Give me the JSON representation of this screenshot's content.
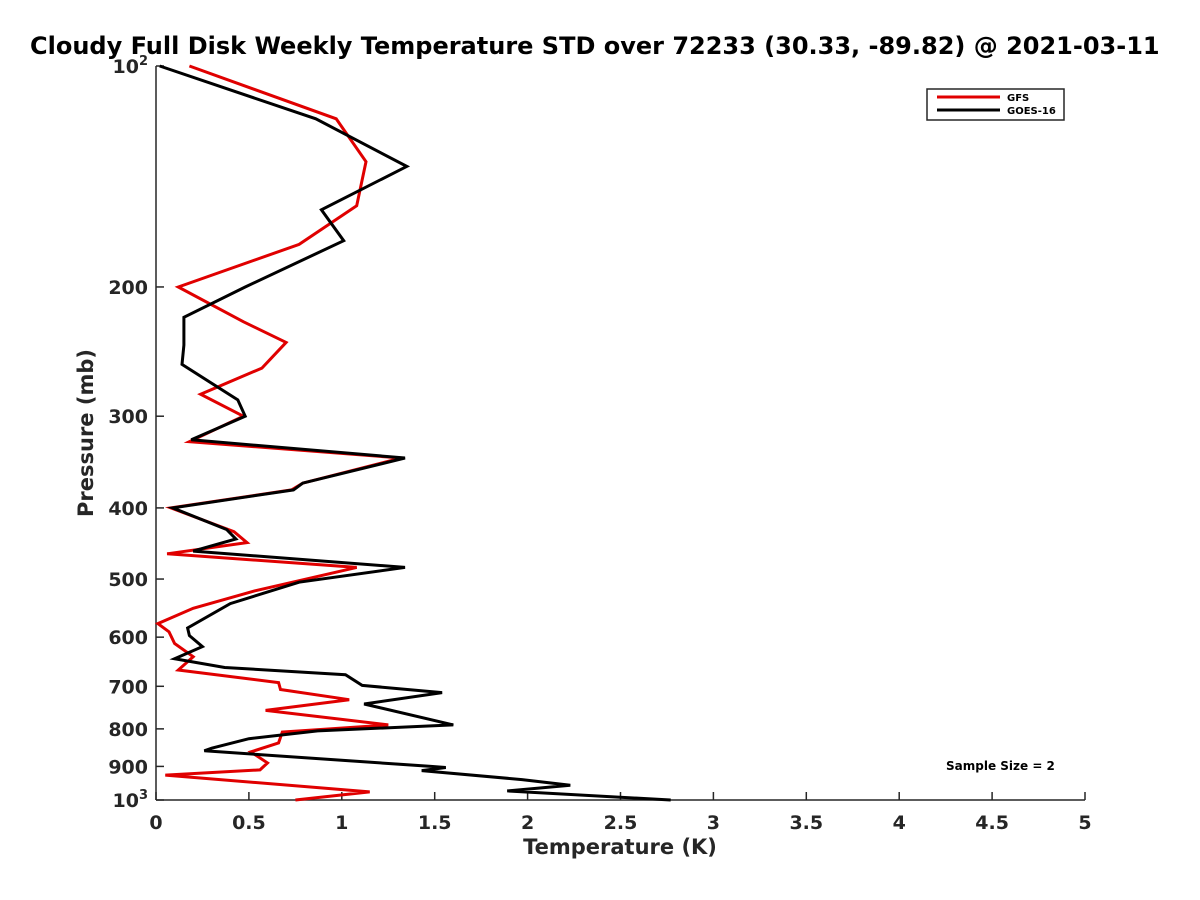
{
  "chart_data": {
    "type": "line",
    "title": "Cloudy Full Disk Weekly Temperature STD over 72233 (30.33, -89.82) @ 2021-03-11",
    "xlabel": "Temperature (K)",
    "ylabel": "Pressure (mb)",
    "xlim": [
      0,
      5
    ],
    "ylim": [
      100,
      1000
    ],
    "yscale": "log",
    "y_reversed": true,
    "grid": false,
    "legend_position": "top-right",
    "x_ticks": [
      "0",
      "0.5",
      "1",
      "1.5",
      "2",
      "2.5",
      "3",
      "3.5",
      "4",
      "4.5",
      "5"
    ],
    "y_ticks": [
      {
        "value": 100,
        "base": "10",
        "exp": "2"
      },
      {
        "value": 200,
        "label": "200"
      },
      {
        "value": 300,
        "label": "300"
      },
      {
        "value": 400,
        "label": "400"
      },
      {
        "value": 500,
        "label": "500"
      },
      {
        "value": 600,
        "label": "600"
      },
      {
        "value": 700,
        "label": "700"
      },
      {
        "value": 800,
        "label": "800"
      },
      {
        "value": 900,
        "label": "900"
      },
      {
        "value": 1000,
        "base": "10",
        "exp": "3"
      }
    ],
    "series": [
      {
        "name": "GFS",
        "color": "#e00000",
        "points": [
          [
            0.18,
            100
          ],
          [
            0.97,
            118
          ],
          [
            1.13,
            135
          ],
          [
            1.08,
            155
          ],
          [
            0.77,
            175
          ],
          [
            0.12,
            200
          ],
          [
            0.47,
            223
          ],
          [
            0.7,
            238
          ],
          [
            0.57,
            258
          ],
          [
            0.24,
            280
          ],
          [
            0.47,
            300
          ],
          [
            0.18,
            325
          ],
          [
            1.32,
            342
          ],
          [
            0.79,
            370
          ],
          [
            0.73,
            378
          ],
          [
            0.08,
            400
          ],
          [
            0.42,
            431
          ],
          [
            0.49,
            446
          ],
          [
            0.06,
            462
          ],
          [
            1.08,
            482
          ],
          [
            0.53,
            519
          ],
          [
            0.2,
            548
          ],
          [
            0.01,
            575
          ],
          [
            0.07,
            590
          ],
          [
            0.1,
            612
          ],
          [
            0.2,
            638
          ],
          [
            0.12,
            665
          ],
          [
            0.66,
            692
          ],
          [
            0.67,
            707
          ],
          [
            1.04,
            730
          ],
          [
            0.59,
            755
          ],
          [
            1.25,
            790
          ],
          [
            0.68,
            808
          ],
          [
            0.66,
            836
          ],
          [
            0.51,
            860
          ],
          [
            0.6,
            890
          ],
          [
            0.56,
            910
          ],
          [
            0.05,
            925
          ],
          [
            1.15,
            975
          ],
          [
            0.75,
            1000
          ]
        ]
      },
      {
        "name": "GOES-16",
        "color": "#000000",
        "points": [
          [
            0.02,
            100
          ],
          [
            0.86,
            118
          ],
          [
            1.35,
            137
          ],
          [
            0.89,
            157
          ],
          [
            1.01,
            173
          ],
          [
            0.48,
            200
          ],
          [
            0.15,
            220
          ],
          [
            0.15,
            240
          ],
          [
            0.14,
            255
          ],
          [
            0.44,
            285
          ],
          [
            0.48,
            300
          ],
          [
            0.19,
            323
          ],
          [
            1.34,
            342
          ],
          [
            0.79,
            370
          ],
          [
            0.74,
            378
          ],
          [
            0.09,
            400
          ],
          [
            0.38,
            428
          ],
          [
            0.43,
            441
          ],
          [
            0.2,
            458
          ],
          [
            1.34,
            482
          ],
          [
            0.77,
            505
          ],
          [
            0.4,
            540
          ],
          [
            0.17,
            583
          ],
          [
            0.18,
            597
          ],
          [
            0.25,
            618
          ],
          [
            0.1,
            642
          ],
          [
            0.37,
            660
          ],
          [
            1.02,
            675
          ],
          [
            1.11,
            698
          ],
          [
            1.54,
            714
          ],
          [
            1.12,
            740
          ],
          [
            1.6,
            790
          ],
          [
            0.87,
            805
          ],
          [
            0.5,
            825
          ],
          [
            0.3,
            850
          ],
          [
            0.26,
            857
          ],
          [
            1.48,
            900
          ],
          [
            1.56,
            903
          ],
          [
            1.43,
            912
          ],
          [
            1.97,
            938
          ],
          [
            2.23,
            955
          ],
          [
            1.89,
            972
          ],
          [
            2.77,
            1000
          ]
        ]
      }
    ],
    "annotation": "Sample Size = 2"
  }
}
